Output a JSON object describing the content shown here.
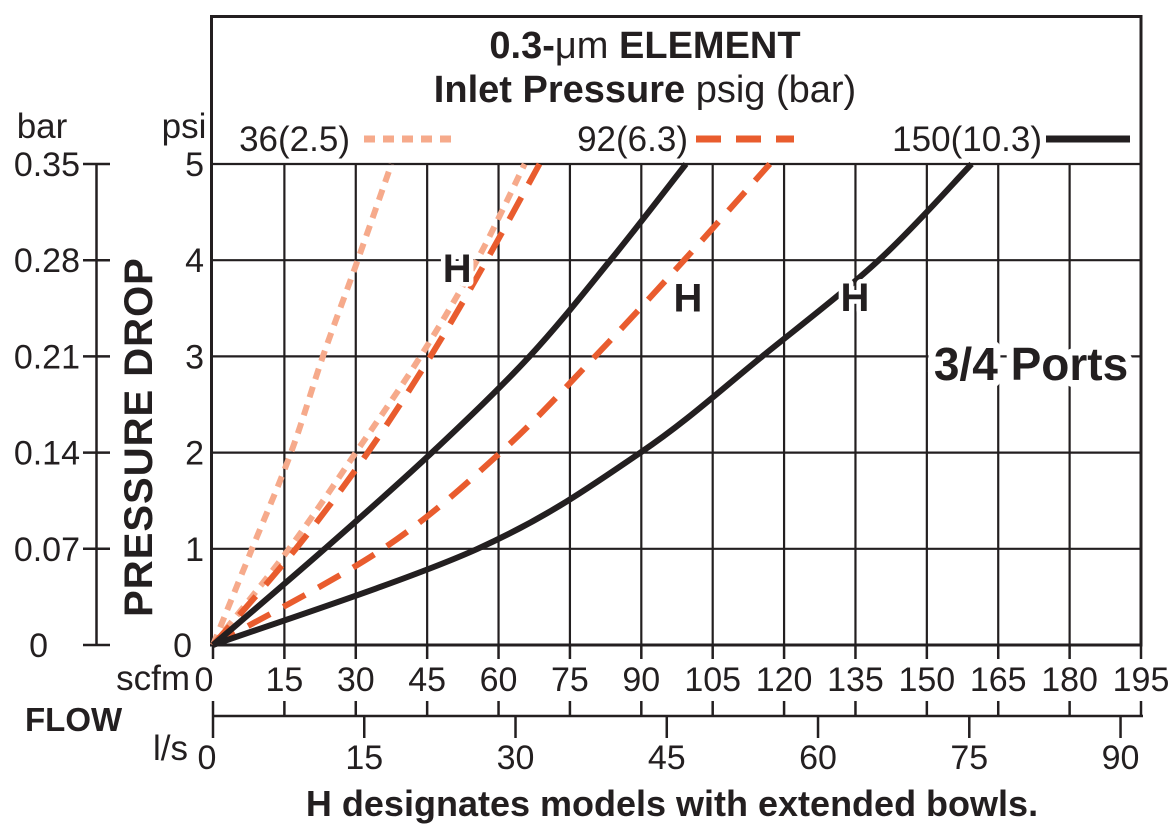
{
  "chart_data": {
    "type": "line",
    "title_parts": {
      "part1": "0.3-",
      "mu": "μm",
      "part2": " ELEMENT"
    },
    "subtitle_parts": {
      "bold": "Inlet Pressure",
      "rest": " psig (bar)"
    },
    "axes": {
      "y_title": "PRESSURE DROP",
      "x_title": "FLOW",
      "grid": true,
      "y_psi": {
        "unit": "psi",
        "range": [
          0,
          5
        ],
        "tick_step": 1,
        "ticks": [
          "5",
          "4",
          "3",
          "2",
          "1",
          "0"
        ]
      },
      "y_bar": {
        "unit": "bar",
        "range": [
          0,
          0.35
        ],
        "tick_step": 0.07,
        "ticks": [
          "0.35",
          "0.28",
          "0.21",
          "0.14",
          "0.07",
          "0"
        ]
      },
      "x_scfm": {
        "unit": "scfm",
        "range": [
          0,
          195
        ],
        "tick_step": 15,
        "ticks": [
          "0",
          "15",
          "30",
          "45",
          "60",
          "75",
          "90",
          "105",
          "120",
          "135",
          "150",
          "165",
          "180",
          "195"
        ]
      },
      "x_ls": {
        "unit": "l/s",
        "range": [
          0,
          92
        ],
        "tick_step": 15,
        "ticks": [
          "0",
          "15",
          "30",
          "45",
          "60",
          "75",
          "90"
        ]
      }
    },
    "legend": {
      "items": [
        {
          "label": "36(2.5)",
          "pressure_psig": 36,
          "pressure_bar": 2.5,
          "style": "dotted",
          "color": "#F6AA8B",
          "dash": "11 8"
        },
        {
          "label": "92(6.3)",
          "pressure_psig": 92,
          "pressure_bar": 6.3,
          "style": "dashed",
          "color": "#E95C2E",
          "dash": "25 15"
        },
        {
          "label": "150(10.3)",
          "pressure_psig": 150,
          "pressure_bar": 10.3,
          "style": "solid",
          "color": "#231F20",
          "dash": ""
        }
      ]
    },
    "series": [
      {
        "name": "36 psig standard",
        "legend": "36(2.5)",
        "model": "standard",
        "color": "#F6AA8B",
        "dash": "11 8",
        "width": 6,
        "psi": [
          0,
          1,
          2,
          3,
          4,
          5
        ],
        "scfm": [
          0,
          8.2,
          16.4,
          23.1,
          30.4,
          37.5
        ]
      },
      {
        "name": "36 psig H extended bowl",
        "legend": "36(2.5)",
        "model": "H",
        "color": "#F6AA8B",
        "dash": "11 8",
        "width": 6,
        "psi": [
          0,
          1,
          2,
          3,
          4,
          5
        ],
        "scfm": [
          0,
          16.0,
          30.0,
          43.6,
          55.5,
          65.5
        ]
      },
      {
        "name": "92 psig standard",
        "legend": "92(6.3)",
        "model": "standard",
        "color": "#E95C2E",
        "dash": "25 15",
        "width": 6,
        "psi": [
          0,
          1,
          2,
          3,
          4,
          5
        ],
        "scfm": [
          0,
          17.4,
          32.5,
          45.7,
          57.5,
          68.6
        ]
      },
      {
        "name": "92 psig H extended bowl",
        "legend": "92(6.3)",
        "model": "H",
        "color": "#E95C2E",
        "dash": "25 15",
        "width": 6,
        "psi": [
          0,
          1,
          2,
          3,
          4,
          5
        ],
        "scfm": [
          0,
          35.7,
          60.4,
          80.3,
          99.0,
          117.0
        ]
      },
      {
        "name": "150 psig standard",
        "legend": "150(10.3)",
        "model": "standard",
        "color": "#231F20",
        "dash": "",
        "width": 6,
        "psi": [
          0,
          1,
          2,
          3,
          4,
          5
        ],
        "scfm": [
          0,
          23.5,
          46.0,
          66.5,
          83.5,
          99.4
        ]
      },
      {
        "name": "150 psig H extended bowl",
        "legend": "150(10.3)",
        "model": "H",
        "color": "#231F20",
        "dash": "",
        "width": 6,
        "psi": [
          0,
          1,
          2,
          3,
          4,
          5
        ],
        "scfm": [
          0,
          55.6,
          89.8,
          115.4,
          139.9,
          159.4
        ]
      }
    ],
    "annotations": {
      "ports": "3/4 Ports",
      "h_curve_labels": [
        {
          "text": "H",
          "scfm": 51.3,
          "psi": 3.92
        },
        {
          "text": "H",
          "scfm": 99.8,
          "psi": 3.61
        },
        {
          "text": "H",
          "scfm": 134.9,
          "psi": 3.62
        }
      ],
      "footer": "H designates models with extended bowls."
    },
    "colors": {
      "ink": "#231F20",
      "peach": "#F6AA8B",
      "orange": "#E95C2E",
      "background": "#ffffff"
    }
  }
}
